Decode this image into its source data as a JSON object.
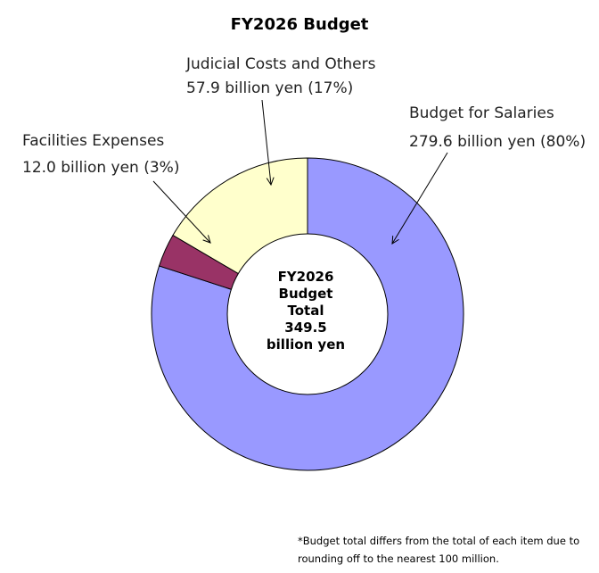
{
  "chart_data": {
    "type": "pie",
    "title": "FY2026 Budget",
    "unit": "billion yen",
    "slices": [
      {
        "label": "Budget for Salaries",
        "value": 279.6,
        "percent": 80,
        "value_text": "279.6 billion yen (80%)",
        "color": "#9999ff"
      },
      {
        "label": "Facilities Expenses",
        "value": 12.0,
        "percent": 3,
        "value_text": "12.0 billion yen (3%)",
        "color": "#993366"
      },
      {
        "label": "Judicial Costs and Others",
        "value": 57.9,
        "percent": 17,
        "value_text": "57.9 billion yen (17%)",
        "color": "#ffffcc"
      }
    ],
    "center_text": [
      "FY2026",
      "Budget",
      "Total",
      "349.5",
      "billion yen"
    ],
    "legend": "none"
  },
  "footnote": [
    "*Budget total differs from the total of each item due to",
    "rounding off to the nearest 100 million."
  ]
}
